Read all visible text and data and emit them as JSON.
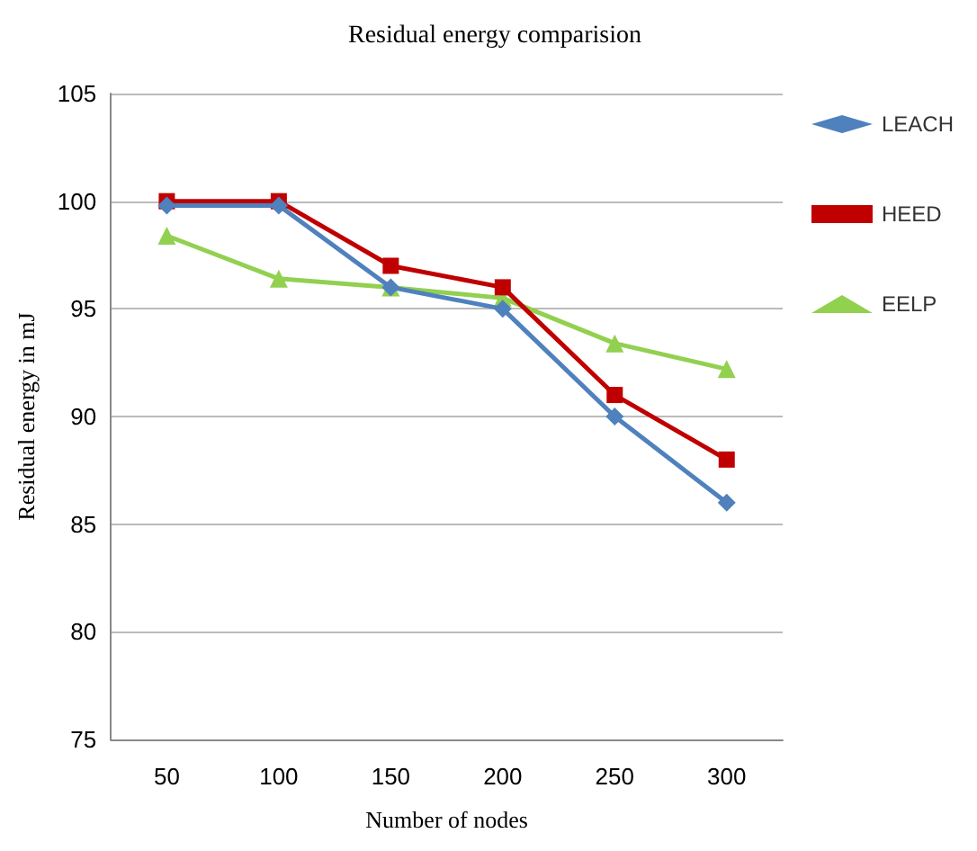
{
  "chart_data": {
    "type": "line",
    "title": "Residual energy comparision",
    "xlabel": "Number of nodes",
    "ylabel": "Residual energy in mJ",
    "categories": [
      "50",
      "100",
      "150",
      "200",
      "250",
      "300"
    ],
    "series": [
      {
        "name": "LEACH",
        "color": "#4f81bd",
        "marker": "diamond",
        "values": [
          99.8,
          99.8,
          96,
          95,
          90,
          86
        ]
      },
      {
        "name": "HEED",
        "color": "#c00000",
        "marker": "square",
        "values": [
          100,
          100,
          97,
          96,
          91,
          88
        ]
      },
      {
        "name": "EELP",
        "color": "#92d050",
        "marker": "triangle",
        "values": [
          98.4,
          96.4,
          96,
          95.5,
          93.4,
          92.2
        ]
      }
    ],
    "ylim": [
      75,
      105
    ],
    "yticks": [
      75,
      80,
      85,
      90,
      95,
      100,
      105
    ],
    "grid": "y",
    "legend": "top right",
    "line_style": "solid"
  }
}
